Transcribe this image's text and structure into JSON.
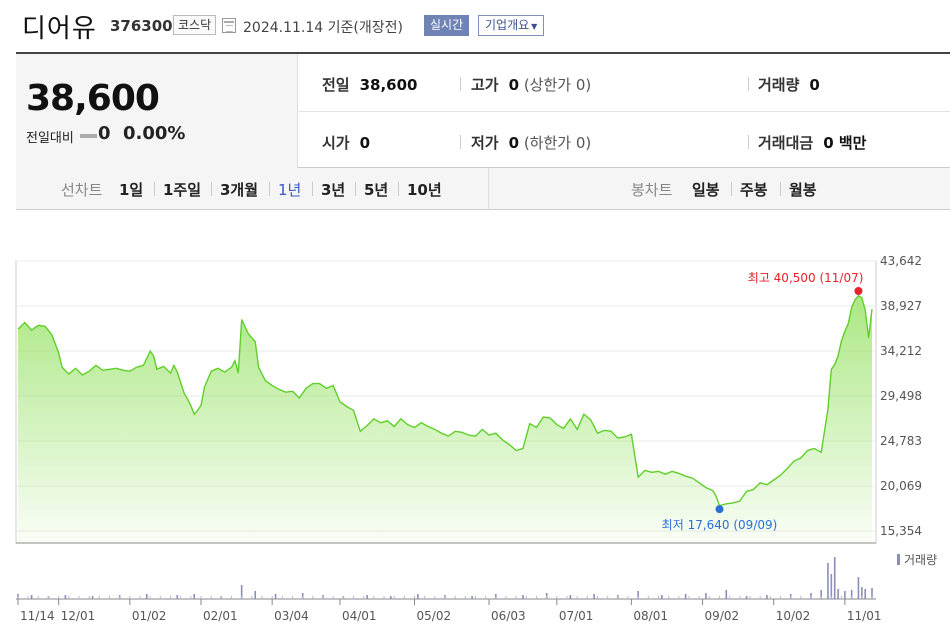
{
  "header": {
    "company": "디어유",
    "code": "376300",
    "market": "코스닥",
    "basis": "2024.11.14  기준(개장전)",
    "realtime": "실시간",
    "corp_info": "기업개요"
  },
  "summary": {
    "price": "38,600",
    "change_label": "전일대비",
    "change_value": "0",
    "change_rate": "0.00%",
    "prev_label": "전일",
    "prev_value": "38,600",
    "high_label": "고가",
    "high_value": "0",
    "upper_limit": "(상한가 0)",
    "volume_label": "거래량",
    "volume_value": "0",
    "open_label": "시가",
    "open_value": "0",
    "low_label": "저가",
    "low_value": "0",
    "lower_limit": "(하한가 0)",
    "amount_label": "거래대금",
    "amount_value": "0 백만"
  },
  "periods": {
    "line_label": "선차트",
    "line_items": [
      "1일",
      "1주일",
      "3개월",
      "1년",
      "3년",
      "5년",
      "10년"
    ],
    "active": "1년",
    "candle_label": "봉차트",
    "candle_items": [
      "일봉",
      "주봉",
      "월봉"
    ]
  },
  "chart_data": {
    "type": "area",
    "ylim": [
      15354,
      43642
    ],
    "y_ticks": [
      "43,642",
      "38,927",
      "34,212",
      "29,498",
      "24,783",
      "20,069",
      "15,354"
    ],
    "x_ticks": [
      "11/14",
      "12/01",
      "01/02",
      "02/01",
      "03/04",
      "04/01",
      "05/02",
      "06/03",
      "07/01",
      "08/01",
      "09/02",
      "10/02",
      "11/01"
    ],
    "x_tick_index": [
      0,
      12,
      33,
      54,
      75,
      95,
      117,
      139,
      159,
      181,
      202,
      223,
      244
    ],
    "max_label": "최고 40,500 (11/07)",
    "min_label": "최저 17,640 (09/09)",
    "max_index": 248,
    "min_index": 207,
    "max_value": 40500,
    "min_value": 17640,
    "volume_label": "거래량",
    "line_color": "#5fcf2a",
    "fill_color": "#8fe05a",
    "max_color": "#e8212b",
    "min_color": "#2a6fd6",
    "anchors": [
      [
        0,
        36500
      ],
      [
        2,
        37200
      ],
      [
        4,
        36400
      ],
      [
        6,
        36900
      ],
      [
        8,
        36800
      ],
      [
        10,
        35900
      ],
      [
        12,
        34000
      ],
      [
        13,
        32500
      ],
      [
        15,
        31800
      ],
      [
        17,
        32400
      ],
      [
        19,
        31700
      ],
      [
        21,
        32100
      ],
      [
        23,
        32700
      ],
      [
        25,
        32200
      ],
      [
        27,
        32300
      ],
      [
        29,
        32400
      ],
      [
        31,
        32200
      ],
      [
        33,
        32100
      ],
      [
        35,
        32500
      ],
      [
        37,
        32700
      ],
      [
        39,
        34200
      ],
      [
        40,
        33700
      ],
      [
        41,
        32300
      ],
      [
        43,
        32600
      ],
      [
        45,
        31900
      ],
      [
        46,
        32700
      ],
      [
        47,
        32000
      ],
      [
        49,
        29800
      ],
      [
        50,
        29200
      ],
      [
        51,
        28500
      ],
      [
        52,
        27600
      ],
      [
        53,
        28000
      ],
      [
        54,
        28500
      ],
      [
        55,
        30400
      ],
      [
        57,
        32100
      ],
      [
        59,
        32400
      ],
      [
        61,
        32000
      ],
      [
        63,
        32500
      ],
      [
        64,
        33200
      ],
      [
        65,
        31900
      ],
      [
        66,
        37500
      ],
      [
        68,
        36000
      ],
      [
        70,
        35200
      ],
      [
        71,
        32500
      ],
      [
        73,
        31100
      ],
      [
        75,
        30600
      ],
      [
        77,
        30200
      ],
      [
        79,
        29900
      ],
      [
        81,
        30000
      ],
      [
        83,
        29300
      ],
      [
        85,
        30300
      ],
      [
        87,
        30800
      ],
      [
        89,
        30800
      ],
      [
        91,
        30300
      ],
      [
        93,
        30600
      ],
      [
        95,
        28900
      ],
      [
        97,
        28400
      ],
      [
        99,
        28000
      ],
      [
        101,
        25800
      ],
      [
        103,
        26400
      ],
      [
        105,
        27100
      ],
      [
        107,
        26700
      ],
      [
        109,
        26900
      ],
      [
        111,
        26300
      ],
      [
        113,
        27100
      ],
      [
        115,
        26500
      ],
      [
        117,
        26200
      ],
      [
        119,
        26700
      ],
      [
        121,
        26300
      ],
      [
        123,
        26000
      ],
      [
        125,
        25600
      ],
      [
        127,
        25300
      ],
      [
        129,
        25800
      ],
      [
        131,
        25700
      ],
      [
        133,
        25400
      ],
      [
        135,
        25300
      ],
      [
        137,
        26000
      ],
      [
        139,
        25400
      ],
      [
        141,
        25600
      ],
      [
        143,
        24900
      ],
      [
        145,
        24400
      ],
      [
        147,
        23800
      ],
      [
        149,
        24000
      ],
      [
        151,
        26600
      ],
      [
        153,
        26200
      ],
      [
        155,
        27300
      ],
      [
        157,
        27200
      ],
      [
        159,
        26500
      ],
      [
        161,
        26100
      ],
      [
        163,
        27100
      ],
      [
        165,
        26000
      ],
      [
        167,
        27600
      ],
      [
        169,
        27000
      ],
      [
        171,
        25600
      ],
      [
        173,
        25900
      ],
      [
        175,
        25800
      ],
      [
        177,
        25100
      ],
      [
        179,
        25200
      ],
      [
        181,
        25500
      ],
      [
        183,
        21000
      ],
      [
        185,
        21700
      ],
      [
        187,
        21500
      ],
      [
        189,
        21600
      ],
      [
        191,
        21300
      ],
      [
        193,
        21600
      ],
      [
        195,
        21400
      ],
      [
        197,
        21100
      ],
      [
        199,
        20900
      ],
      [
        201,
        20400
      ],
      [
        203,
        19900
      ],
      [
        205,
        19600
      ],
      [
        206,
        19000
      ],
      [
        207,
        18000
      ],
      [
        209,
        18200
      ],
      [
        211,
        18300
      ],
      [
        213,
        18500
      ],
      [
        215,
        19500
      ],
      [
        217,
        19700
      ],
      [
        219,
        20400
      ],
      [
        221,
        20200
      ],
      [
        223,
        20700
      ],
      [
        225,
        21200
      ],
      [
        227,
        21900
      ],
      [
        229,
        22700
      ],
      [
        231,
        23000
      ],
      [
        233,
        23800
      ],
      [
        235,
        24000
      ],
      [
        237,
        23600
      ],
      [
        239,
        28100
      ],
      [
        240,
        32300
      ],
      [
        241,
        32800
      ],
      [
        242,
        33700
      ],
      [
        243,
        35300
      ],
      [
        244,
        36300
      ],
      [
        245,
        37100
      ],
      [
        246,
        38800
      ],
      [
        247,
        39600
      ],
      [
        248,
        40000
      ],
      [
        249,
        39800
      ],
      [
        250,
        38500
      ],
      [
        251,
        35600
      ],
      [
        252,
        38600
      ]
    ],
    "volumes": [
      [
        0,
        5
      ],
      [
        4,
        4
      ],
      [
        9,
        3
      ],
      [
        14,
        4
      ],
      [
        22,
        3
      ],
      [
        30,
        4
      ],
      [
        38,
        5
      ],
      [
        47,
        4
      ],
      [
        52,
        5
      ],
      [
        60,
        3
      ],
      [
        66,
        14
      ],
      [
        70,
        8
      ],
      [
        76,
        5
      ],
      [
        84,
        6
      ],
      [
        90,
        4
      ],
      [
        96,
        3
      ],
      [
        103,
        4
      ],
      [
        110,
        3
      ],
      [
        118,
        5
      ],
      [
        126,
        4
      ],
      [
        134,
        3
      ],
      [
        141,
        5
      ],
      [
        149,
        4
      ],
      [
        156,
        6
      ],
      [
        163,
        4
      ],
      [
        170,
        5
      ],
      [
        177,
        4
      ],
      [
        183,
        8
      ],
      [
        190,
        4
      ],
      [
        197,
        5
      ],
      [
        203,
        6
      ],
      [
        209,
        9
      ],
      [
        215,
        3
      ],
      [
        221,
        4
      ],
      [
        228,
        5
      ],
      [
        234,
        6
      ],
      [
        237,
        9
      ],
      [
        239,
        36
      ],
      [
        240,
        25
      ],
      [
        241,
        42
      ],
      [
        242,
        10
      ],
      [
        244,
        8
      ],
      [
        246,
        9
      ],
      [
        248,
        22
      ],
      [
        249,
        12
      ],
      [
        250,
        10
      ],
      [
        252,
        11
      ]
    ]
  }
}
